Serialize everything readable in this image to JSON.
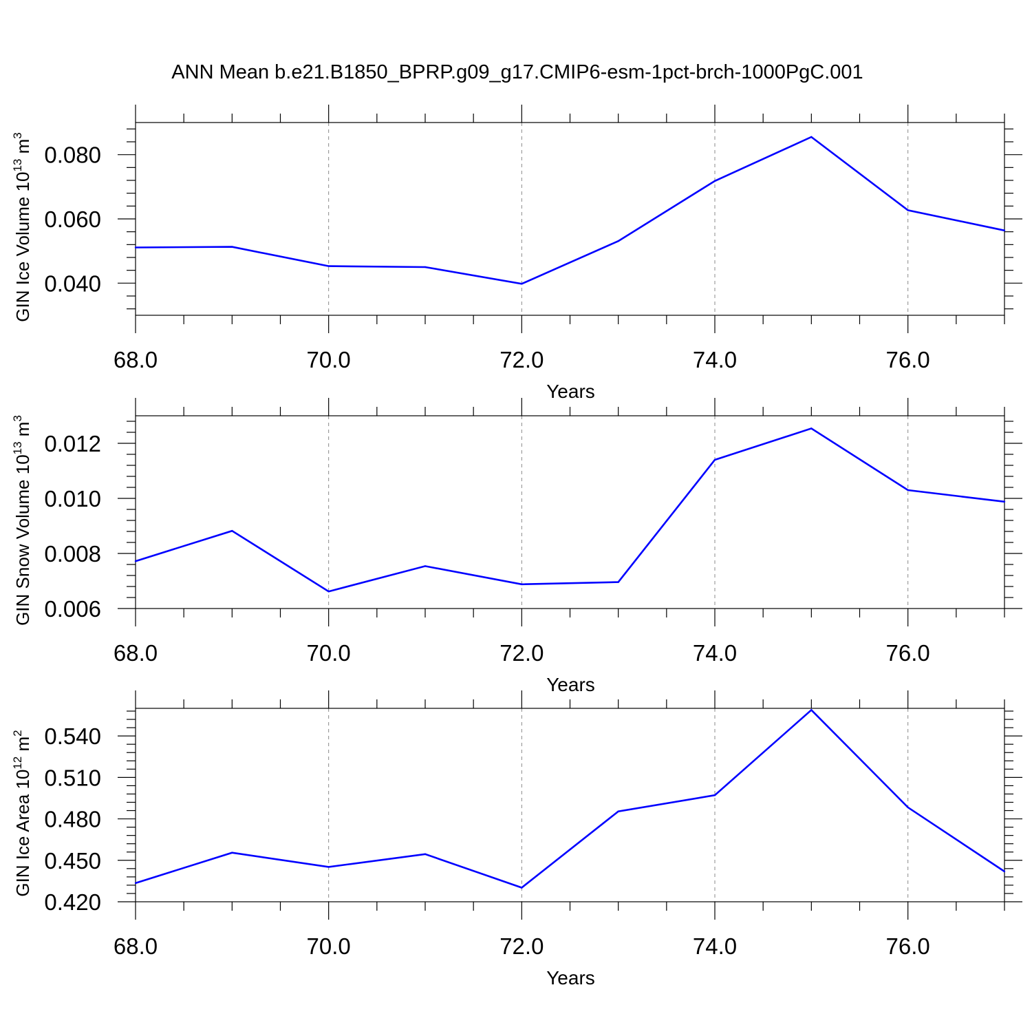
{
  "title": "ANN Mean b.e21.B1850_BPRP.g09_g17.CMIP6-esm-1pct-brch-1000PgC.001",
  "colors": {
    "line": "#0000ff",
    "axis": "#000000",
    "grid": "#888888"
  },
  "chart_data": [
    {
      "type": "line",
      "ylabel_main": "GIN Ice Volume 10",
      "ylabel_exp": "13",
      "ylabel_unit": " m",
      "ylabel_unit_exp": "3",
      "xlabel": "Years",
      "xlim": [
        68,
        77
      ],
      "ylim": [
        0.03,
        0.09
      ],
      "yticks": [
        0.04,
        0.06,
        0.08
      ],
      "ytick_labels": [
        "0.040",
        "0.060",
        "0.080"
      ],
      "xticks": [
        68,
        70,
        72,
        74,
        76
      ],
      "xtick_labels": [
        "68.0",
        "70.0",
        "72.0",
        "74.0",
        "76.0"
      ],
      "grid": "vertical dashed at major x ticks",
      "x": [
        68,
        69,
        70,
        71,
        72,
        73,
        74,
        75,
        76,
        77
      ],
      "values": [
        0.0511,
        0.0513,
        0.0453,
        0.045,
        0.0398,
        0.0531,
        0.0718,
        0.0855,
        0.0627,
        0.0564
      ]
    },
    {
      "type": "line",
      "ylabel_main": "GIN Snow Volume 10",
      "ylabel_exp": "13",
      "ylabel_unit": " m",
      "ylabel_unit_exp": "3",
      "xlabel": "Years",
      "xlim": [
        68,
        77
      ],
      "ylim": [
        0.006,
        0.013
      ],
      "yticks": [
        0.006,
        0.008,
        0.01,
        0.012
      ],
      "ytick_labels": [
        "0.006",
        "0.008",
        "0.010",
        "0.012"
      ],
      "xticks": [
        68,
        70,
        72,
        74,
        76
      ],
      "xtick_labels": [
        "68.0",
        "70.0",
        "72.0",
        "74.0",
        "76.0"
      ],
      "grid": "vertical dashed at major x ticks",
      "x": [
        68,
        69,
        70,
        71,
        72,
        73,
        74,
        75,
        76,
        77
      ],
      "values": [
        0.00772,
        0.00882,
        0.00662,
        0.00754,
        0.00688,
        0.00696,
        0.0114,
        0.01254,
        0.0103,
        0.00988
      ]
    },
    {
      "type": "line",
      "ylabel_main": "GIN Ice Area 10",
      "ylabel_exp": "12",
      "ylabel_unit": " m",
      "ylabel_unit_exp": "2",
      "xlabel": "Years",
      "xlim": [
        68,
        77
      ],
      "ylim": [
        0.42,
        0.56
      ],
      "yticks": [
        0.42,
        0.45,
        0.48,
        0.51,
        0.54
      ],
      "ytick_labels": [
        "0.420",
        "0.450",
        "0.480",
        "0.510",
        "0.540"
      ],
      "xticks": [
        68,
        70,
        72,
        74,
        76
      ],
      "xtick_labels": [
        "68.0",
        "70.0",
        "72.0",
        "74.0",
        "76.0"
      ],
      "grid": "vertical dashed at major x ticks",
      "x": [
        68,
        69,
        70,
        71,
        72,
        73,
        74,
        75,
        76,
        77
      ],
      "values": [
        0.4335,
        0.4555,
        0.4452,
        0.4545,
        0.4302,
        0.4854,
        0.4971,
        0.5588,
        0.4883,
        0.4419
      ]
    }
  ]
}
